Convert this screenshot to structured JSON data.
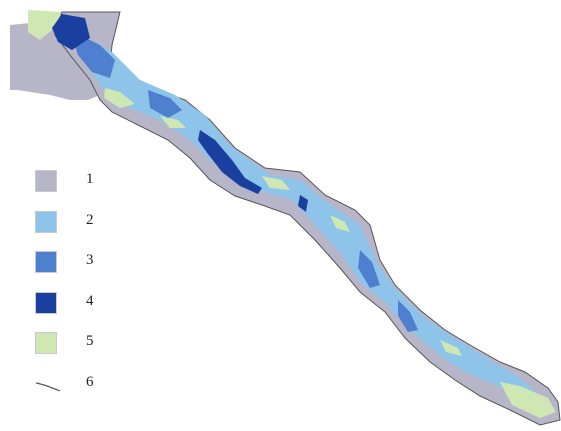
{
  "legend": {
    "items": [
      {
        "label": "1",
        "symbol": "zone-1-swatch",
        "color": "#b7b6c9"
      },
      {
        "label": "2",
        "symbol": "zone-2-swatch",
        "color": "#8fc4ea"
      },
      {
        "label": "3",
        "symbol": "zone-3-swatch",
        "color": "#4f80cf"
      },
      {
        "label": "4",
        "symbol": "zone-4-swatch",
        "color": "#1b3f9e"
      },
      {
        "label": "5",
        "symbol": "zone-5-swatch",
        "color": "#cfe8b3"
      },
      {
        "label": "6",
        "symbol": "boundary-line",
        "color": "#555555"
      }
    ]
  },
  "colors": {
    "zone1": "#b7b6c9",
    "zone2": "#8fc4ea",
    "zone3": "#4f80cf",
    "zone4": "#1b3f9e",
    "zone5": "#cfe8b3",
    "line": "#555555"
  }
}
